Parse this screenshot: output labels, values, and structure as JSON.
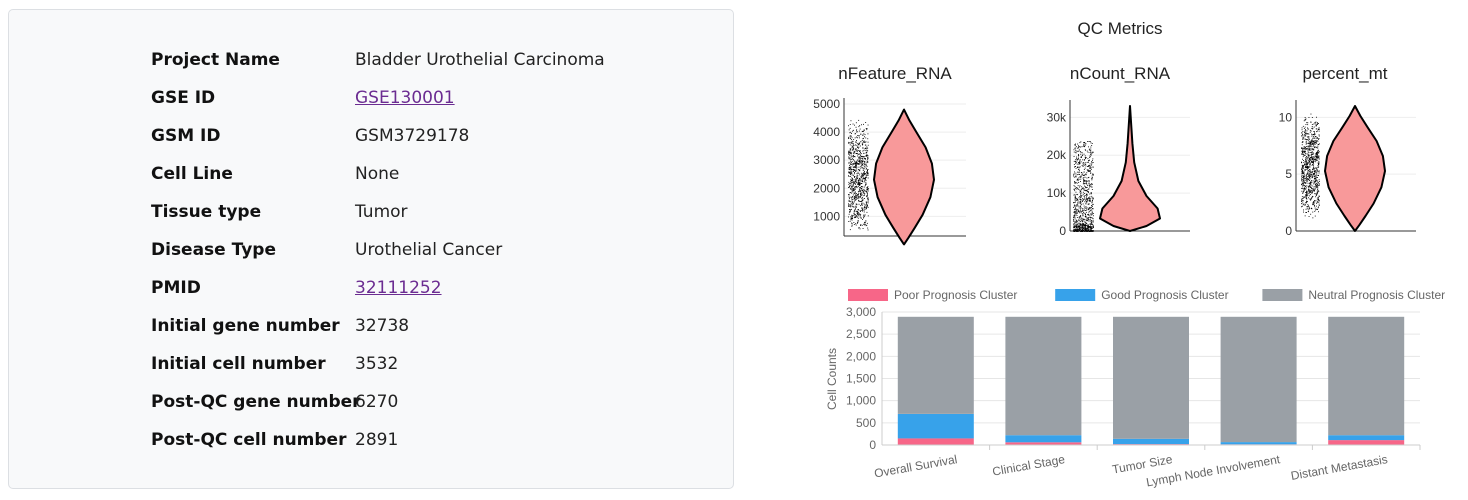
{
  "info": {
    "rows": [
      {
        "label": "Project Name",
        "value": "Bladder Urothelial Carcinoma",
        "link": false
      },
      {
        "label": "GSE ID",
        "value": "GSE130001",
        "link": true
      },
      {
        "label": "GSM ID",
        "value": "GSM3729178",
        "link": false
      },
      {
        "label": "Cell Line",
        "value": "None",
        "link": false
      },
      {
        "label": "Tissue type",
        "value": "Tumor",
        "link": false
      },
      {
        "label": "Disease Type",
        "value": "Urothelial Cancer",
        "link": false
      },
      {
        "label": "PMID",
        "value": "32111252",
        "link": true
      },
      {
        "label": "Initial gene number",
        "value": "32738",
        "link": false
      },
      {
        "label": "Initial cell number",
        "value": "3532",
        "link": false
      },
      {
        "label": "Post-QC gene number",
        "value": "6270",
        "link": false
      },
      {
        "label": "Post-QC cell number",
        "value": "2891",
        "link": false
      }
    ]
  },
  "chart_data": [
    {
      "type": "violin",
      "title": "QC Metrics",
      "panels": [
        {
          "name": "nFeature_RNA",
          "ylim": [
            300,
            5000
          ],
          "ticks": [
            1000,
            2000,
            3000,
            4000,
            5000
          ],
          "tick_labels": [
            "1000",
            "2000",
            "3000",
            "4000",
            "5000"
          ],
          "min": 0,
          "median": 2400,
          "max": 4800,
          "color": "#f8999a"
        },
        {
          "name": "nCount_RNA",
          "ylim": [
            0,
            33000
          ],
          "ticks": [
            0,
            10000,
            20000,
            30000
          ],
          "tick_labels": [
            "0",
            "10k",
            "20k",
            "30k"
          ],
          "min": 0,
          "median": 8000,
          "max": 33000,
          "color": "#f8999a"
        },
        {
          "name": "percent_mt",
          "ylim": [
            0,
            11
          ],
          "ticks": [
            0,
            5,
            10
          ],
          "tick_labels": [
            "0",
            "5",
            "10"
          ],
          "min": 0,
          "median": 5.5,
          "max": 11,
          "color": "#f8999a"
        }
      ]
    },
    {
      "type": "bar",
      "stacked": true,
      "categories": [
        "Overall Survival",
        "Clinical Stage",
        "Tumor Size",
        "Lymph Node Involvement",
        "Distant Metastasis"
      ],
      "series": [
        {
          "name": "Poor Prognosis Cluster",
          "color": "#f76688",
          "values": [
            150,
            60,
            20,
            15,
            110
          ]
        },
        {
          "name": "Good Prognosis Cluster",
          "color": "#37a2ea",
          "values": [
            550,
            160,
            120,
            50,
            110
          ]
        },
        {
          "name": "Neutral Prognosis Cluster",
          "color": "#9aa0a6",
          "values": [
            2191,
            2671,
            2751,
            2826,
            2671
          ]
        }
      ],
      "ylabel": "Cell Counts",
      "ylim": [
        0,
        3000
      ],
      "yticks": [
        0,
        500,
        1000,
        1500,
        2000,
        2500,
        3000
      ],
      "ytick_labels": [
        "0",
        "500",
        "1,000",
        "1,500",
        "2,000",
        "2,500",
        "3,000"
      ],
      "legend": "top"
    }
  ]
}
